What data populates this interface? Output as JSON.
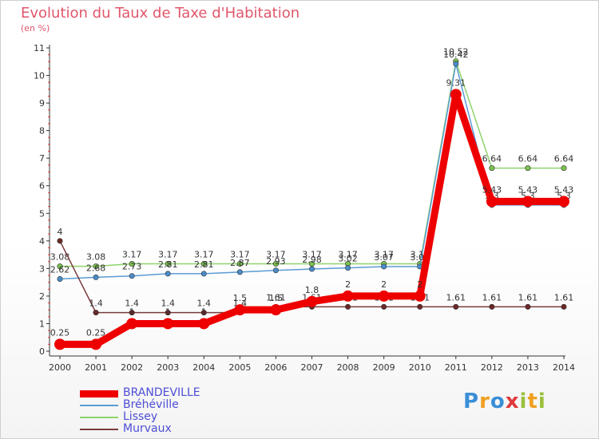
{
  "header": {
    "title": "Evolution du Taux de Taxe d'Habitation",
    "unit": "(en %)"
  },
  "brand": {
    "logo": "Proxiti",
    "letters": [
      "P",
      "r",
      "o",
      "x",
      "i",
      "t",
      "i"
    ]
  },
  "chart_data": {
    "type": "line",
    "title": "Evolution du Taux de Taxe d'Habitation",
    "ylabel": "(en %)",
    "xlabel": "",
    "ylim": [
      0,
      11
    ],
    "yticks": [
      0,
      1,
      2,
      3,
      4,
      5,
      6,
      7,
      8,
      9,
      10,
      11
    ],
    "grid": false,
    "legend_position": "bottom-left",
    "categories": [
      "2000",
      "2001",
      "2002",
      "2003",
      "2004",
      "2005",
      "2006",
      "2007",
      "2008",
      "2009",
      "2010",
      "2011",
      "2012",
      "2013",
      "2014"
    ],
    "series": [
      {
        "name": "Lissey",
        "color": "#8fd36b",
        "marker": "#7cc44e",
        "values": [
          3.08,
          3.08,
          3.17,
          3.17,
          3.17,
          3.17,
          3.17,
          3.17,
          3.17,
          3.17,
          3.17,
          10.52,
          6.64,
          6.64,
          6.64
        ],
        "labels": [
          "3.08",
          "3.08",
          "3.17",
          "3.17",
          "3.17",
          "3.17",
          "3.17",
          "3.17",
          "3.17",
          "3.17",
          "3.17",
          "10.52",
          "6.64",
          "6.64",
          "6.64"
        ]
      },
      {
        "name": "Bréhéville",
        "color": "#5b9bd5",
        "marker": "#4a8cc8",
        "values": [
          2.62,
          2.68,
          2.73,
          2.81,
          2.81,
          2.87,
          2.93,
          2.98,
          3.02,
          3.07,
          3.07,
          10.42,
          5.3,
          5.3,
          5.3
        ],
        "labels": [
          "2.62",
          "2.68",
          "2.73",
          "2.81",
          "2.81",
          "2.87",
          "2.93",
          "2.98",
          "3.02",
          "3.07",
          "3.07",
          "10.42",
          "5.3",
          "5.3",
          "5.3"
        ]
      },
      {
        "name": "Murvaux",
        "color": "#7a3b3b",
        "marker": "#6b2727",
        "values": [
          4,
          1.4,
          1.4,
          1.4,
          1.4,
          1.4,
          1.61,
          1.61,
          1.61,
          1.61,
          1.61,
          1.61,
          1.61,
          1.61,
          1.61
        ],
        "labels": [
          "4",
          "1.4",
          "1.4",
          "1.4",
          "1.4",
          "1.4",
          "1.61",
          "1.61",
          "1.61",
          "1.61",
          "1.61",
          "1.61",
          "1.61",
          "1.61",
          "1.61"
        ]
      },
      {
        "name": "BRANDEVILLE",
        "color": "#ee0000",
        "marker": "#ee0000",
        "values": [
          0.25,
          0.25,
          1,
          1,
          1,
          1.5,
          1.5,
          1.8,
          2,
          2,
          2,
          9.31,
          5.43,
          5.43,
          5.43
        ],
        "labels": [
          "0.25",
          "0.25",
          "1",
          "1",
          "1",
          "1.5",
          "1.5",
          "1.8",
          "2",
          "2",
          "2",
          "9.31",
          "5.43",
          "5.43",
          "5.43"
        ]
      }
    ]
  },
  "legend": {
    "items": [
      {
        "label": "BRANDEVILLE",
        "color": "#ee0000"
      },
      {
        "label": "Bréhéville",
        "color": "#5b9bd5"
      },
      {
        "label": "Lissey",
        "color": "#8fd36b"
      },
      {
        "label": "Murvaux",
        "color": "#7a3b3b"
      }
    ]
  }
}
